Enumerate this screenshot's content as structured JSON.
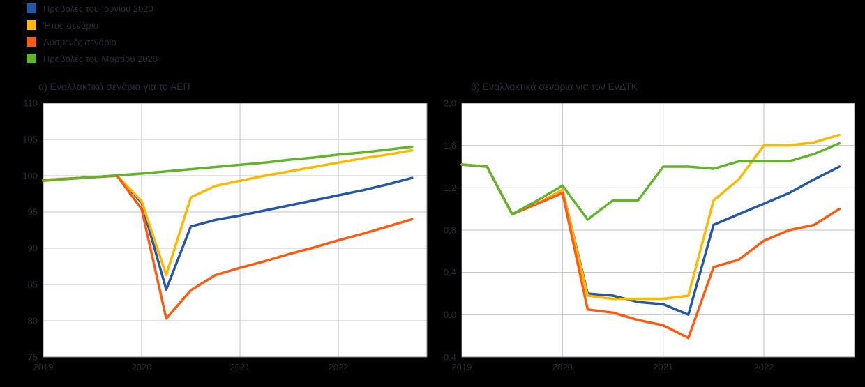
{
  "page": {
    "background": "#000000",
    "text_color": "#262d34"
  },
  "legend": {
    "position": "top-left",
    "items": [
      {
        "key": "june2020",
        "label": "Προβολές του Ιουνίου 2020",
        "color": "#2457a4"
      },
      {
        "key": "mild",
        "label": "Ήπιο σενάριο",
        "color": "#fcb900"
      },
      {
        "key": "severe",
        "label": "Δυσμενές σενάριο",
        "color": "#fd5a12"
      },
      {
        "key": "march2020",
        "label": "Προβολές του Μαρτίου 2020",
        "color": "#64b32c"
      }
    ]
  },
  "chart_data": [
    {
      "type": "line",
      "id": "gdp",
      "title": "α) Εναλλακτικά σενάρια για το ΑΕΠ",
      "xlabel": "",
      "ylabel": "",
      "grid": true,
      "x": [
        2019.0,
        2019.25,
        2019.5,
        2019.75,
        2020.0,
        2020.25,
        2020.5,
        2020.75,
        2021.0,
        2021.25,
        2021.5,
        2021.75,
        2022.0,
        2022.25,
        2022.5,
        2022.75
      ],
      "xlim": [
        2019.0,
        2022.9
      ],
      "ylim": [
        75,
        110
      ],
      "xticks": [
        2019,
        2020,
        2021,
        2022
      ],
      "xtick_labels": [
        "2019",
        "2020",
        "2021",
        "2022"
      ],
      "xgrid": [
        2020,
        2021,
        2022
      ],
      "yticks": [
        110,
        105,
        100,
        95,
        90,
        85,
        80,
        75
      ],
      "ytick_labels": [
        "110",
        "105",
        "100",
        "95",
        "90",
        "85",
        "80",
        "75"
      ],
      "series": [
        {
          "key": "june2020",
          "name": "Προβολές του Ιουνίου 2020",
          "values": [
            99.4,
            99.6,
            99.8,
            100.0,
            96.3,
            84.3,
            93.0,
            93.9,
            94.5,
            95.2,
            95.9,
            96.6,
            97.3,
            98.0,
            98.8,
            99.7
          ]
        },
        {
          "key": "mild",
          "name": "Ήπιο σενάριο",
          "values": [
            99.4,
            99.6,
            99.8,
            100.0,
            96.5,
            86.3,
            97.0,
            98.6,
            99.3,
            100.0,
            100.6,
            101.2,
            101.8,
            102.4,
            102.9,
            103.5
          ]
        },
        {
          "key": "severe",
          "name": "Δυσμενές σενάριο",
          "values": [
            99.4,
            99.6,
            99.8,
            100.0,
            95.4,
            80.3,
            84.2,
            86.3,
            87.3,
            88.2,
            89.2,
            90.1,
            91.1,
            92.0,
            93.0,
            94.0
          ]
        },
        {
          "key": "march2020",
          "name": "Προβολές του Μαρτίου 2020",
          "values": [
            99.3,
            99.55,
            99.8,
            100.05,
            100.3,
            100.6,
            100.9,
            101.2,
            101.5,
            101.8,
            102.2,
            102.5,
            102.9,
            103.2,
            103.6,
            104.0
          ]
        }
      ]
    },
    {
      "type": "line",
      "id": "hicp",
      "title": "β) Εναλλακτικά σενάρια για τον ΕνΔΤΚ",
      "xlabel": "",
      "ylabel": "",
      "grid": true,
      "x": [
        2019.0,
        2019.25,
        2019.5,
        2019.75,
        2020.0,
        2020.25,
        2020.5,
        2020.75,
        2021.0,
        2021.25,
        2021.5,
        2021.75,
        2022.0,
        2022.25,
        2022.5,
        2022.75
      ],
      "xlim": [
        2019.0,
        2022.9
      ],
      "ylim": [
        -0.4,
        2.0
      ],
      "xticks": [
        2019,
        2020,
        2021,
        2022
      ],
      "xtick_labels": [
        "2019",
        "2020",
        "2021",
        "2022"
      ],
      "xgrid": [
        2020,
        2021,
        2022
      ],
      "yticks": [
        2.0,
        1.6,
        1.2,
        0.8,
        0.4,
        0.0,
        -0.4
      ],
      "ytick_labels": [
        "2,0",
        "1,6",
        "1,2",
        "0,8",
        "0,4",
        "0,0",
        "-0,4"
      ],
      "series": [
        {
          "key": "june2020",
          "name": "Προβολές του Ιουνίου 2020",
          "values": [
            1.42,
            1.4,
            0.95,
            1.05,
            1.18,
            0.2,
            0.18,
            0.12,
            0.1,
            0.0,
            0.85,
            0.95,
            1.05,
            1.15,
            1.28,
            1.4
          ]
        },
        {
          "key": "mild",
          "name": "Ήπιο σενάριο",
          "values": [
            1.42,
            1.4,
            0.95,
            1.05,
            1.18,
            0.18,
            0.15,
            0.15,
            0.15,
            0.18,
            1.08,
            1.28,
            1.6,
            1.6,
            1.63,
            1.7
          ]
        },
        {
          "key": "severe",
          "name": "Δυσμενές σενάριο",
          "values": [
            1.42,
            1.4,
            0.95,
            1.05,
            1.15,
            0.05,
            0.02,
            -0.05,
            -0.1,
            -0.22,
            0.45,
            0.52,
            0.7,
            0.8,
            0.85,
            1.0
          ]
        },
        {
          "key": "march2020",
          "name": "Προβολές του Μαρτίου 2020",
          "values": [
            1.42,
            1.4,
            0.95,
            1.08,
            1.22,
            0.9,
            1.08,
            1.08,
            1.4,
            1.4,
            1.38,
            1.45,
            1.45,
            1.45,
            1.52,
            1.62
          ]
        }
      ]
    }
  ]
}
